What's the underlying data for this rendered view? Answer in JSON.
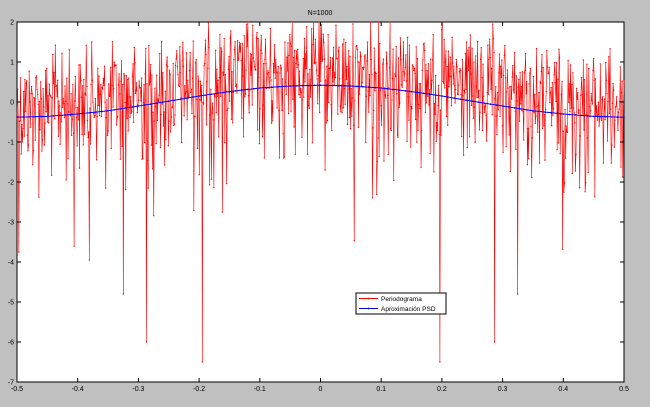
{
  "chart_data": {
    "type": "line",
    "title": "N=1000",
    "xlabel": "",
    "ylabel": "",
    "xlim": [
      -0.5,
      0.5
    ],
    "ylim": [
      -7,
      2
    ],
    "xticks": [
      -0.5,
      -0.4,
      -0.3,
      -0.2,
      -0.1,
      0,
      0.1,
      0.2,
      0.3,
      0.4,
      0.5
    ],
    "xtick_labels": [
      "-0.5",
      "-0.4",
      "-0.3",
      "-0.2",
      "-0.1",
      "0",
      "0.1",
      "0.2",
      "0.3",
      "0.4",
      "0.5"
    ],
    "yticks": [
      -7,
      -6,
      -5,
      -4,
      -3,
      -2,
      -1,
      0,
      1,
      2
    ],
    "ytick_labels": [
      "-7",
      "-6",
      "-5",
      "-4",
      "-3",
      "-2",
      "-1",
      "0",
      "1",
      "2"
    ],
    "grid": false,
    "legend_position": "lower-right",
    "series": [
      {
        "name": "Periodograma",
        "color": "#ff0000",
        "marker": "dot",
        "sample_count": 1000,
        "notable_points": [
          {
            "x": -0.195,
            "y": -6.5
          },
          {
            "x": 0.197,
            "y": -6.5
          },
          {
            "x": -0.287,
            "y": -6.0
          },
          {
            "x": 0.287,
            "y": -6.0
          },
          {
            "x": -0.325,
            "y": -4.8
          },
          {
            "x": 0.325,
            "y": -4.8
          },
          {
            "x": -0.12,
            "y": 2.0
          },
          {
            "x": 0.115,
            "y": 2.0
          }
        ]
      },
      {
        "name": "Aproximación PSD",
        "color": "#0000ff",
        "marker": "dot",
        "x": [
          -0.5,
          -0.45,
          -0.4,
          -0.35,
          -0.3,
          -0.25,
          -0.2,
          -0.15,
          -0.1,
          -0.05,
          0,
          0.05,
          0.1,
          0.15,
          0.2,
          0.25,
          0.3,
          0.35,
          0.4,
          0.45,
          0.5
        ],
        "y": [
          -0.38,
          -0.36,
          -0.3,
          -0.22,
          -0.1,
          0.02,
          0.15,
          0.26,
          0.35,
          0.4,
          0.42,
          0.4,
          0.35,
          0.26,
          0.15,
          0.02,
          -0.1,
          -0.22,
          -0.3,
          -0.36,
          -0.38
        ]
      }
    ]
  }
}
